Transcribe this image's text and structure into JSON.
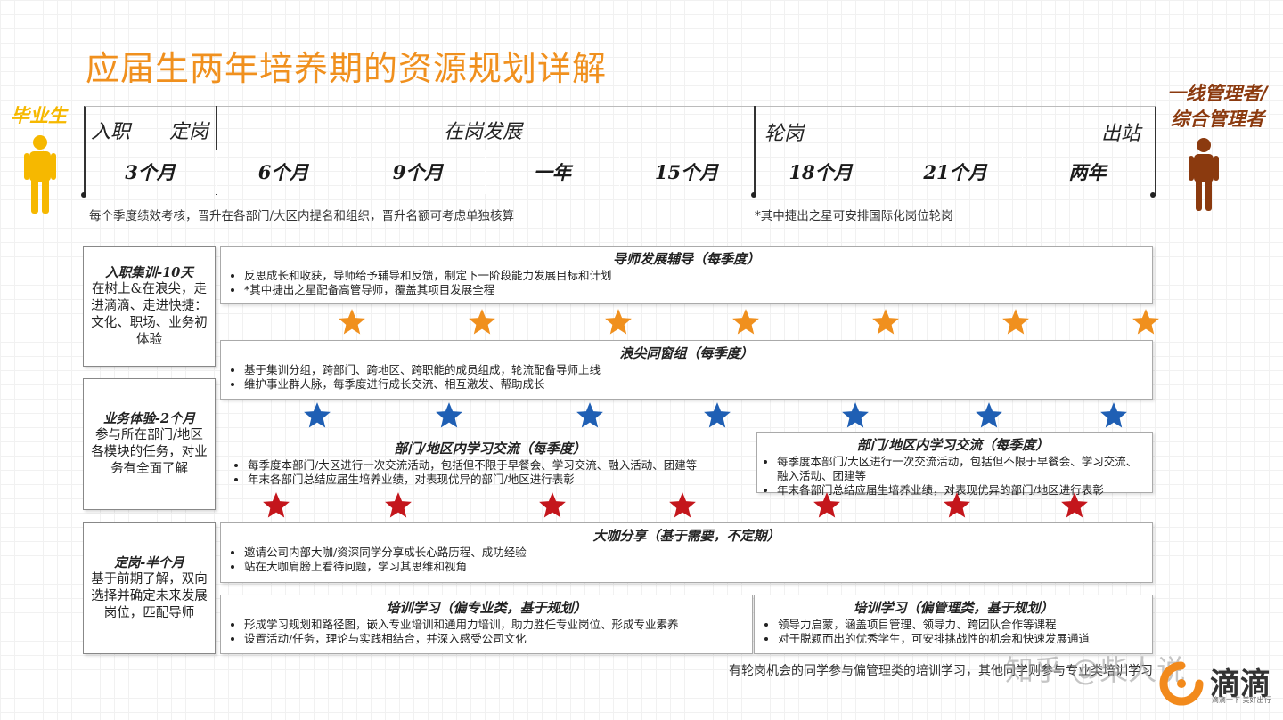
{
  "title": "应届生两年培养期的资源规划详解",
  "left_person_label": "毕业生",
  "right_person_label_line1": "一线管理者/",
  "right_person_label_line2": "综合管理者",
  "colors": {
    "title": "#f0901e",
    "graduate": "#f6b800",
    "manager": "#8b3a0f",
    "star_orange": "#f0901e",
    "star_blue": "#1f5fb4",
    "star_red": "#c4161c"
  },
  "phases": {
    "join": "入职",
    "fix": "定岗",
    "develop": "在岗发展",
    "rotate": "轮岗",
    "exit": "出站"
  },
  "timeline": [
    {
      "label": "3个月",
      "color": "#fde6d4"
    },
    {
      "label": "6个月",
      "color": "#f9c6a6"
    },
    {
      "label": "9个月",
      "color": "#f7b089"
    },
    {
      "label": "一年",
      "color": "#f49766"
    },
    {
      "label": "15个月",
      "color": "#ef7b3d"
    },
    {
      "label": "18个月",
      "color": "#f28a1c"
    },
    {
      "label": "21个月",
      "color": "#d9620d"
    },
    {
      "label": "两年",
      "color": "#d85514"
    }
  ],
  "notes": {
    "quarterly": "每个季度绩效考核，晋升在各部门/大区内提名和组织，晋升名额可考虑单独核算",
    "rotation": "*其中捷出之星可安排国际化岗位轮岗"
  },
  "left_boxes": [
    {
      "title": "入职集训-10天",
      "text": "在树上&在浪尖，走进滴滴、走进快捷：文化、职场、业务初体验"
    },
    {
      "title": "业务体验-2个月",
      "text": "参与所在部门/地区各模块的任务，对业务有全面了解"
    },
    {
      "title": "定岗-半个月",
      "text": "基于前期了解，双向选择并确定未来发展岗位，匹配导师"
    }
  ],
  "programs": {
    "mentor": {
      "title": "导师发展辅导（每季度）",
      "items": [
        "反思成长和收获，导师给予辅导和反馈，制定下一阶段能力发展目标和计划",
        "*其中捷出之星配备高管导师，覆盖其项目发展全程"
      ]
    },
    "cohort": {
      "title": "浪尖同窗组（每季度）",
      "items": [
        "基于集训分组，跨部门、跨地区、跨职能的成员组成，轮流配备导师上线",
        "维护事业群人脉，每季度进行成长交流、相互激发、帮助成长"
      ]
    },
    "exchange_left": {
      "title": "部门/地区内学习交流（每季度）",
      "items": [
        "每季度本部门/大区进行一次交流活动，包括但不限于早餐会、学习交流、融入活动、团建等",
        "年末各部门总结应届生培养业绩，对表现优异的部门/地区进行表彰"
      ]
    },
    "exchange_right": {
      "title": "部门/地区内学习交流（每季度）",
      "items": [
        "每季度本部门/大区进行一次交流活动，包括但不限于早餐会、学习交流、融入活动、团建等",
        "年末各部门总结应届生培养业绩，对表现优异的部门/地区进行表彰"
      ]
    },
    "expert": {
      "title": "大咖分享（基于需要，不定期）",
      "items": [
        "邀请公司内部大咖/资深同学分享成长心路历程、成功经验",
        "站在大咖肩膀上看待问题，学习其思维和视角"
      ]
    },
    "train_pro": {
      "title": "培训学习（偏专业类，基于规划）",
      "items": [
        "形成学习规划和路径图，嵌入专业培训和通用力培训，助力胜任专业岗位、形成专业素养",
        "设置活动/任务，理论与实践相结合，并深入感受公司文化"
      ]
    },
    "train_mgmt": {
      "title": "培训学习（偏管理类，基于规划）",
      "items": [
        "领导力启蒙，涵盖项目管理、领导力、跨团队合作等课程",
        "对于脱颖而出的优秀学生，可安排挑战性的机会和快速发展通道"
      ]
    }
  },
  "bottom_note": "有轮岗机会的同学参与偏管理类的培训学习，其他同学则参与专业类培训学习",
  "watermark": "知乎 @柴人说",
  "logo": {
    "name": "滴滴",
    "slogan": "滴滴一下 美好出行"
  }
}
